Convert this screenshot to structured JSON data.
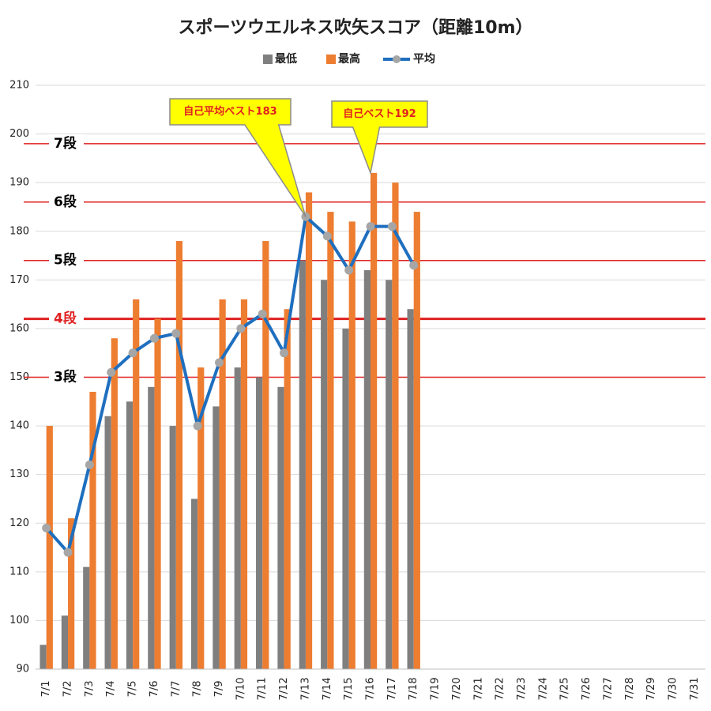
{
  "chart_data": {
    "type": "bar",
    "title": "スポーツウエルネス吹矢スコア（距離10m）",
    "categories": [
      "7/1",
      "7/2",
      "7/3",
      "7/4",
      "7/5",
      "7/6",
      "7/7",
      "7/8",
      "7/9",
      "7/10",
      "7/11",
      "7/12",
      "7/13",
      "7/14",
      "7/15",
      "7/16",
      "7/17",
      "7/18",
      "7/19",
      "7/20",
      "7/21",
      "7/22",
      "7/23",
      "7/24",
      "7/25",
      "7/26",
      "7/27",
      "7/28",
      "7/29",
      "7/30",
      "7/31"
    ],
    "series": [
      {
        "name": "最低",
        "type": "bar",
        "color": "#7f7f7f",
        "values": [
          95,
          101,
          111,
          142,
          145,
          148,
          140,
          125,
          144,
          152,
          150,
          148,
          174,
          170,
          160,
          172,
          170,
          164,
          null,
          null,
          null,
          null,
          null,
          null,
          null,
          null,
          null,
          null,
          null,
          null,
          null
        ]
      },
      {
        "name": "最高",
        "type": "bar",
        "color": "#ed7d31",
        "values": [
          140,
          121,
          147,
          158,
          166,
          162,
          178,
          152,
          166,
          166,
          178,
          164,
          188,
          184,
          182,
          192,
          190,
          184,
          null,
          null,
          null,
          null,
          null,
          null,
          null,
          null,
          null,
          null,
          null,
          null,
          null
        ]
      },
      {
        "name": "平均",
        "type": "line",
        "color": "#1f6fbf",
        "marker_color": "#a6a6a6",
        "values": [
          119,
          114,
          132,
          151,
          155,
          158,
          159,
          140,
          153,
          160,
          163,
          155,
          183,
          179,
          172,
          181,
          181,
          173,
          null,
          null,
          null,
          null,
          null,
          null,
          null,
          null,
          null,
          null,
          null,
          null,
          null
        ]
      }
    ],
    "ylim": [
      90,
      210
    ],
    "yticks": [
      90,
      100,
      110,
      120,
      130,
      140,
      150,
      160,
      170,
      180,
      190,
      200,
      210
    ],
    "grid": true,
    "reference_lines": [
      {
        "label": "7段",
        "value": 198,
        "color": "#e02020",
        "label_color": "#000000"
      },
      {
        "label": "6段",
        "value": 186,
        "color": "#e02020",
        "label_color": "#000000"
      },
      {
        "label": "5段",
        "value": 174,
        "color": "#e02020",
        "label_color": "#000000"
      },
      {
        "label": "4段",
        "value": 162,
        "color": "#e02020",
        "label_color": "#e02020"
      },
      {
        "label": "3段",
        "value": 150,
        "color": "#e02020",
        "label_color": "#000000"
      }
    ],
    "annotations": [
      {
        "text": "自己平均ベスト183"
      },
      {
        "text": "自己ベスト192"
      }
    ]
  }
}
